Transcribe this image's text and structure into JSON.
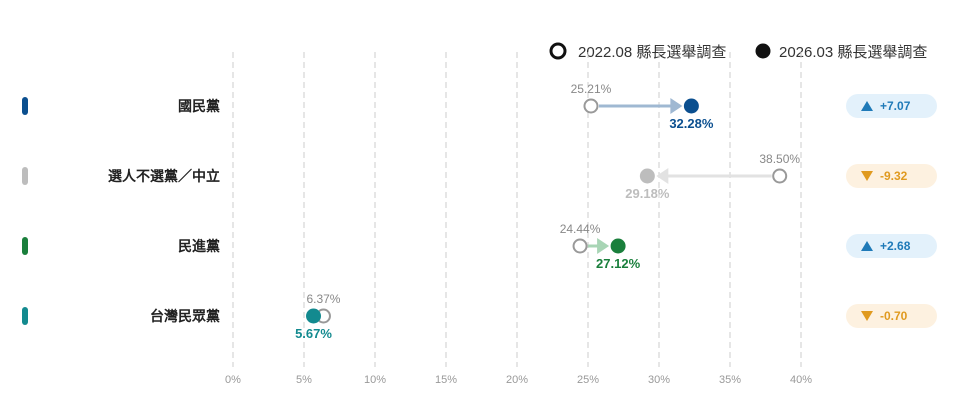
{
  "legend": {
    "old": "2022.08 縣長選舉調查",
    "new": "2026.03 縣長選舉調查"
  },
  "chart_data": {
    "type": "dumbbell",
    "xlim": [
      0,
      40
    ],
    "x_ticks": [
      "0%",
      "5%",
      "10%",
      "15%",
      "20%",
      "25%",
      "30%",
      "35%",
      "40%"
    ],
    "grid": "vertical dashed",
    "legend_position": "top-right",
    "rows": [
      {
        "party": "國民黨",
        "old": 25.21,
        "new": 32.28,
        "old_label": "25.21%",
        "new_label": "32.28%",
        "change": "+7.07",
        "direction": "up",
        "color": "#0b4f8f",
        "arrow_color": "#9fb8d2"
      },
      {
        "party": "選人不選黨／中立",
        "old": 38.5,
        "new": 29.18,
        "old_label": "38.50%",
        "new_label": "29.18%",
        "change": "-9.32",
        "direction": "down",
        "color": "#bdbdbd",
        "arrow_color": "#e2e2e2"
      },
      {
        "party": "民進黨",
        "old": 24.44,
        "new": 27.12,
        "old_label": "24.44%",
        "new_label": "27.12%",
        "change": "+2.68",
        "direction": "up",
        "color": "#1a7f3c",
        "arrow_color": "#a8d5b5"
      },
      {
        "party": "台灣民眾黨",
        "old": 6.37,
        "new": 5.67,
        "old_label": "6.37%",
        "new_label": "5.67%",
        "change": "-0.70",
        "direction": "down",
        "color": "#138a8f",
        "arrow_color": "#9fd0d2"
      }
    ]
  },
  "colors": {
    "grid": "#cccccc",
    "old_marker": "#999999",
    "badge_up_bg": "#e3f1fb",
    "badge_up_text": "#1f7ab8",
    "badge_down_bg": "#fdf1e0",
    "badge_down_text": "#e09a1f"
  }
}
